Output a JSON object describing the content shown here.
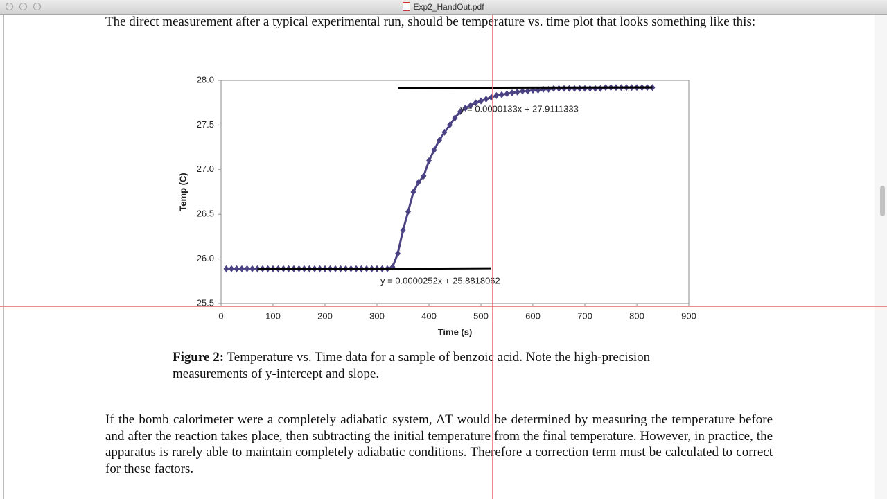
{
  "window": {
    "title": "Exp2_HandOut.pdf"
  },
  "document": {
    "intro": "The direct measurement after a typical experimental run, should be temperature vs. time plot that looks something like this:",
    "caption": {
      "label": "Figure 2:",
      "text": "Temperature vs. Time data for a sample of benzoic acid.  Note the high-precision measurements of y-intercept and slope."
    },
    "body": "If the bomb calorimeter were a completely adiabatic system, ΔT would be determined by measuring the temperature before and after the reaction takes place, then subtracting the initial temperature from the final temperature.  However, in practice, the apparatus is rarely able to maintain completely adiabatic conditions.  Therefore a correction term must be calculated to correct for these factors."
  },
  "chart_data": {
    "type": "scatter",
    "x_label": "Time (s)",
    "y_label": "Temp (C)",
    "xlim": [
      0,
      900
    ],
    "xticks": [
      0,
      100,
      200,
      300,
      400,
      500,
      600,
      700,
      800,
      900
    ],
    "ylim": [
      25.5,
      28.0
    ],
    "yticks": [
      25.5,
      {
        "value": 26.0,
        "label": "26.0"
      },
      26.5,
      {
        "value": 27.0,
        "label": "27.0"
      },
      27.5,
      {
        "value": 28.0,
        "label": "28.0"
      }
    ],
    "series": [
      {
        "color": "#4b4283",
        "x": [
          10,
          20,
          30,
          40,
          50,
          60,
          70,
          80,
          90,
          100,
          110,
          120,
          130,
          140,
          150,
          160,
          170,
          180,
          190,
          200,
          210,
          220,
          230,
          240,
          250,
          260,
          270,
          280,
          290,
          300,
          310,
          320,
          330,
          340,
          350,
          360,
          370,
          380,
          390,
          400,
          410,
          420,
          430,
          440,
          450,
          460,
          470,
          480,
          490,
          500,
          510,
          520,
          530,
          540,
          550,
          560,
          570,
          580,
          590,
          600,
          610,
          620,
          630,
          640,
          650,
          660,
          670,
          680,
          690,
          700,
          710,
          720,
          730,
          740,
          750,
          760,
          770,
          780,
          790,
          800,
          810,
          820,
          830
        ],
        "y": [
          25.89,
          25.89,
          25.89,
          25.89,
          25.89,
          25.89,
          25.89,
          25.89,
          25.89,
          25.89,
          25.89,
          25.89,
          25.89,
          25.89,
          25.89,
          25.89,
          25.89,
          25.89,
          25.89,
          25.89,
          25.89,
          25.89,
          25.89,
          25.89,
          25.89,
          25.89,
          25.89,
          25.89,
          25.89,
          25.89,
          25.89,
          25.89,
          25.91,
          26.06,
          26.32,
          26.53,
          26.75,
          26.86,
          26.93,
          27.1,
          27.22,
          27.33,
          27.42,
          27.5,
          27.58,
          27.65,
          27.69,
          27.72,
          27.75,
          27.77,
          27.79,
          27.81,
          27.83,
          27.84,
          27.85,
          27.86,
          27.87,
          27.88,
          27.88,
          27.89,
          27.89,
          27.9,
          27.9,
          27.91,
          27.91,
          27.91,
          27.91,
          27.91,
          27.91,
          27.91,
          27.91,
          27.91,
          27.91,
          27.92,
          27.92,
          27.92,
          27.92,
          27.92,
          27.92,
          27.92,
          27.92,
          27.92,
          27.92
        ]
      }
    ],
    "trendlines": [
      {
        "label": "y = 0.0000252x + 25.8818062",
        "slope": 2.52e-05,
        "intercept": 25.8818062,
        "x": [
          70,
          520
        ],
        "color": "#000000"
      },
      {
        "label": "y = 0.0000133x + 27.9111333",
        "slope": 1.33e-05,
        "intercept": 27.9111333,
        "x": [
          340,
          830
        ],
        "color": "#000000"
      }
    ]
  }
}
